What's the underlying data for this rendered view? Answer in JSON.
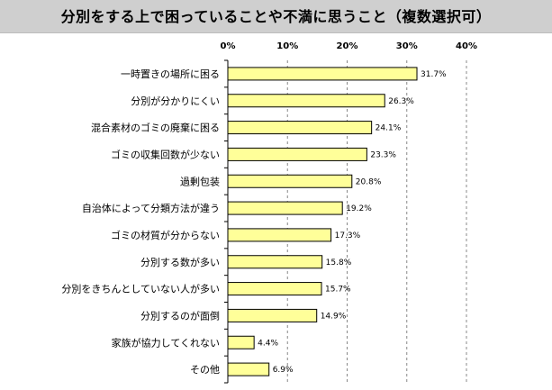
{
  "chart_data": {
    "type": "bar",
    "orientation": "horizontal",
    "title": "分別をする上で困っていることや不満に思うこと（複数選択可）",
    "categories": [
      "一時置きの場所に困る",
      "分別が分かりにくい",
      "混合素材のゴミの廃棄に困る",
      "ゴミの収集回数が少ない",
      "過剰包装",
      "自治体によって分類方法が違う",
      "ゴミの材質が分からない",
      "分別する数が多い",
      "分別をきちんとしていない人が多い",
      "分別するのが面倒",
      "家族が協力してくれない",
      "その他"
    ],
    "values": [
      31.7,
      26.3,
      24.1,
      23.3,
      20.8,
      19.2,
      17.3,
      15.8,
      15.7,
      14.9,
      4.4,
      6.9
    ],
    "value_labels": [
      "31.7%",
      "26.3%",
      "24.1%",
      "23.3%",
      "20.8%",
      "19.2%",
      "17.3%",
      "15.8%",
      "15.7%",
      "14.9%",
      "4.4%",
      "6.9%"
    ],
    "xlim": [
      0,
      40
    ],
    "x_ticks": [
      0,
      10,
      20,
      30,
      40
    ],
    "x_tick_labels": [
      "0%",
      "10%",
      "20%",
      "30%",
      "40%"
    ],
    "grid": "vertical dashed",
    "legend": "none",
    "bar_color": "#ffff99",
    "bar_edge_color": "#000000",
    "title_background": "#cfcfcf"
  }
}
